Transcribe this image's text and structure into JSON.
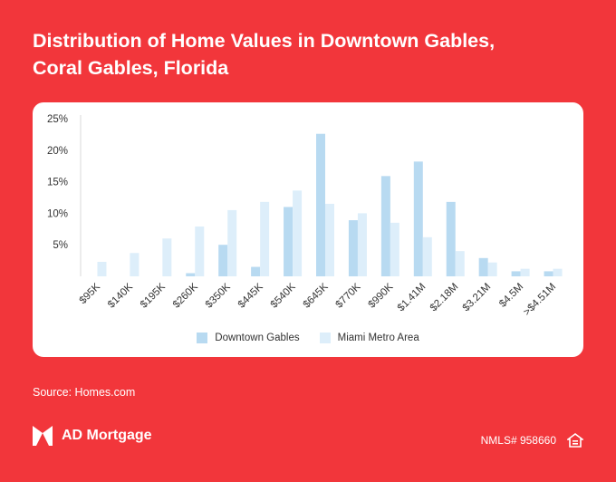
{
  "title": {
    "line1": "Distribution of Home Values in Downtown Gables,",
    "line2": "Coral Gables, Florida"
  },
  "source": "Source: Homes.com",
  "brand": {
    "name": "AD Mortgage",
    "logo_icon": "ad-mortgage-logo-icon"
  },
  "nmls": "NMLS# 958660",
  "equal_housing_icon": "equal-housing-icon",
  "colors": {
    "background": "#f2363b",
    "series_downtown": "#b8daf1",
    "series_metro": "#ddeefa",
    "axis_text": "#333333"
  },
  "chart_data": {
    "type": "bar",
    "title": "Distribution of Home Values in Downtown Gables, Coral Gables, Florida",
    "xlabel": "",
    "ylabel": "",
    "ylim": [
      0,
      25
    ],
    "yticks": [
      {
        "value": 5,
        "label": "5%"
      },
      {
        "value": 10,
        "label": "10%"
      },
      {
        "value": 15,
        "label": "15%"
      },
      {
        "value": 20,
        "label": "20%"
      },
      {
        "value": 25,
        "label": "25%"
      }
    ],
    "grid": false,
    "legend_position": "bottom",
    "categories": [
      "$95K",
      "$140K",
      "$195K",
      "$260K",
      "$350K",
      "$445K",
      "$540K",
      "$645K",
      "$770K",
      "$990K",
      "$1.41M",
      "$2.18M",
      "$3.21M",
      "$4.5M",
      ">$4.51M"
    ],
    "series": [
      {
        "name": "Downtown Gables",
        "values": [
          0,
          0,
          0,
          0.5,
          5.0,
          1.5,
          11.0,
          22.6,
          8.9,
          15.9,
          18.2,
          11.8,
          2.9,
          0.8,
          0.8
        ]
      },
      {
        "name": "Miami Metro Area",
        "values": [
          2.3,
          3.7,
          6.0,
          7.9,
          10.5,
          11.8,
          13.6,
          11.5,
          10.0,
          8.5,
          6.2,
          4.0,
          2.2,
          1.2,
          1.2
        ]
      }
    ]
  }
}
